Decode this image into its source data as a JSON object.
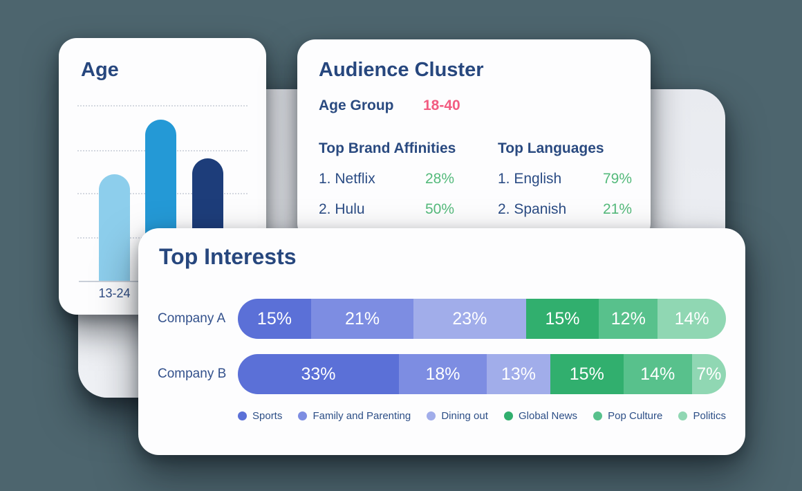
{
  "colors": {
    "page_background": "#4D656E",
    "panel": "#ECEEF2",
    "card": "#FDFDFE",
    "navy_text": "#2A4A80",
    "pink_accent": "#F25C81",
    "green_accent": "#54BA7B",
    "gridline": "#D4D8E0",
    "axis": "#C9CFD8",
    "bar_value_text": "#FFFFFF"
  },
  "chart_data": [
    {
      "type": "bar",
      "title": "Age",
      "categories": [
        "13-24",
        "",
        ""
      ],
      "values": [
        60,
        91,
        69
      ],
      "values_note": "estimated percent of plot height; y-axis has no visible tick labels",
      "bar_colors": [
        "#8DCEEC",
        "#2499D6",
        "#1D3D7A"
      ],
      "xlabel": "",
      "ylabel": "",
      "grid": "horizontal dashed",
      "legend_position": "none"
    },
    {
      "type": "table",
      "title": "Audience Cluster",
      "age_group_label": "Age Group",
      "age_group_value": "18-40",
      "columns": [
        {
          "heading": "Top Brand Affinities",
          "rows": [
            {
              "name": "1. Netflix",
              "value": "28%"
            },
            {
              "name": "2. Hulu",
              "value": "50%"
            }
          ]
        },
        {
          "heading": "Top Languages",
          "rows": [
            {
              "name": "1. English",
              "value": "79%"
            },
            {
              "name": "2. Spanish",
              "value": "21%"
            }
          ]
        }
      ]
    },
    {
      "type": "stacked-bar",
      "title": "Top Interests",
      "categories": [
        "Company A",
        "Company B"
      ],
      "unit": "%",
      "legend_position": "bottom",
      "series": [
        {
          "name": "Sports",
          "color": "#5B70D7",
          "values": [
            15,
            33
          ]
        },
        {
          "name": "Family and Parenting",
          "color": "#7D8DE2",
          "values": [
            21,
            18
          ]
        },
        {
          "name": "Dining out",
          "color": "#A1ADEA",
          "values": [
            23,
            13
          ]
        },
        {
          "name": "Global News",
          "color": "#31AF6E",
          "values": [
            15,
            15
          ]
        },
        {
          "name": "Pop Culture",
          "color": "#58C18C",
          "values": [
            12,
            14
          ]
        },
        {
          "name": "Politics",
          "color": "#90D7B3",
          "values": [
            14,
            7
          ]
        }
      ]
    }
  ]
}
